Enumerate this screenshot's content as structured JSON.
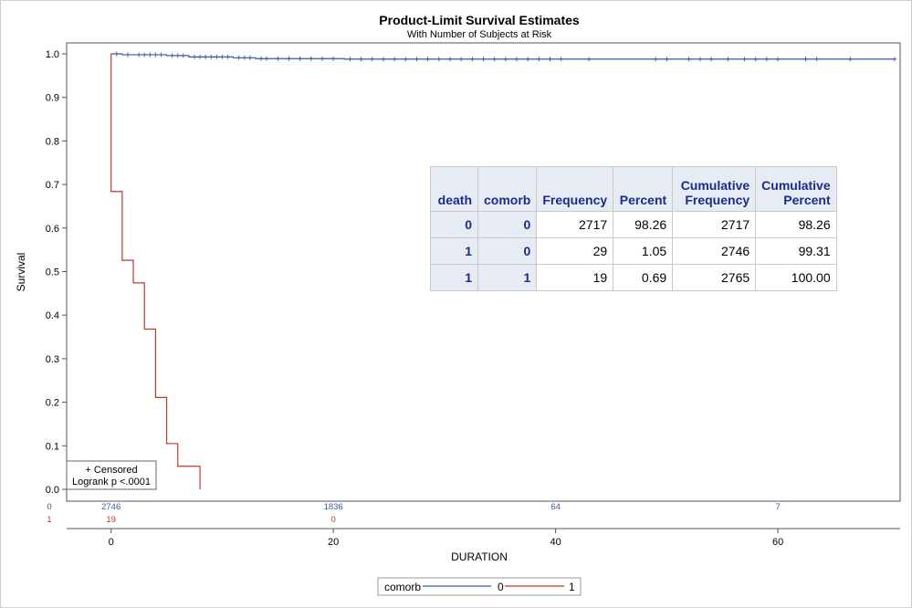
{
  "chart_data": {
    "type": "line",
    "title": "Product-Limit Survival Estimates",
    "subtitle": "With Number of Subjects at Risk",
    "xlabel": "DURATION",
    "ylabel": "Survival",
    "xlim": [
      -4,
      71
    ],
    "ylim": [
      0,
      1
    ],
    "x_ticks": [
      0,
      20,
      40,
      60
    ],
    "y_ticks": [
      0.0,
      0.1,
      0.2,
      0.3,
      0.4,
      0.5,
      0.6,
      0.7,
      0.8,
      0.9,
      1.0
    ],
    "y_tick_labels": [
      "0.0",
      "0.1",
      "0.2",
      "0.3",
      "0.4",
      "0.5",
      "0.6",
      "0.7",
      "0.8",
      "0.9",
      "1.0"
    ],
    "grid": false,
    "legend_position": "bottom-center",
    "legend_title": "comorb",
    "series": [
      {
        "name": "0",
        "color": "#3b5aa0",
        "steps": [
          [
            0,
            1.0
          ],
          [
            1,
            0.998
          ],
          [
            5,
            0.996
          ],
          [
            7,
            0.993
          ],
          [
            11,
            0.991
          ],
          [
            13,
            0.989
          ],
          [
            21,
            0.988
          ],
          [
            70.5,
            0.988
          ]
        ],
        "censored": [
          0.5,
          1.5,
          2.5,
          3.0,
          3.5,
          4.0,
          4.5,
          5.5,
          6.0,
          6.5,
          7.5,
          8.0,
          8.5,
          9.0,
          9.5,
          10.0,
          10.5,
          11.5,
          12.0,
          12.5,
          13.5,
          14.0,
          15.0,
          16.0,
          17.0,
          18.0,
          19.0,
          20.0,
          21.5,
          22.5,
          23.5,
          24.5,
          25.5,
          26.5,
          27.5,
          28.5,
          29.5,
          30.5,
          31.5,
          32.5,
          33.5,
          34.5,
          35.5,
          36.5,
          37.5,
          38.5,
          39.5,
          40.5,
          43.0,
          49.0,
          50.0,
          52.0,
          53.0,
          54.0,
          55.5,
          57.0,
          58.0,
          59.0,
          60.0,
          62.5,
          63.5,
          66.5,
          70.5
        ]
      },
      {
        "name": "1",
        "color": "#c0392b",
        "steps": [
          [
            0,
            1.0
          ],
          [
            0,
            0.684
          ],
          [
            1,
            0.526
          ],
          [
            2,
            0.474
          ],
          [
            3,
            0.368
          ],
          [
            4,
            0.211
          ],
          [
            5,
            0.105
          ],
          [
            6,
            0.053
          ],
          [
            8,
            0.0
          ]
        ],
        "censored": []
      }
    ],
    "annotation": {
      "lines": [
        "+ Censored",
        "Logrank p <.0001"
      ]
    },
    "risk_table": {
      "times": [
        0,
        20,
        40,
        60
      ],
      "rows": [
        {
          "group": "0",
          "color": "#3b5aa0",
          "counts": [
            "2746",
            "1836",
            "64",
            "7"
          ]
        },
        {
          "group": "1",
          "color": "#c0392b",
          "counts": [
            "19",
            "0",
            "",
            ""
          ]
        }
      ]
    },
    "table": {
      "columns": [
        "death",
        "comorb",
        "Frequency",
        "Percent",
        "Cumulative Frequency",
        "Cumulative Percent"
      ],
      "rows": [
        [
          "0",
          "0",
          "2717",
          "98.26",
          "2717",
          "98.26"
        ],
        [
          "1",
          "0",
          "29",
          "1.05",
          "2746",
          "99.31"
        ],
        [
          "1",
          "1",
          "19",
          "0.69",
          "2765",
          "100.00"
        ]
      ]
    }
  }
}
